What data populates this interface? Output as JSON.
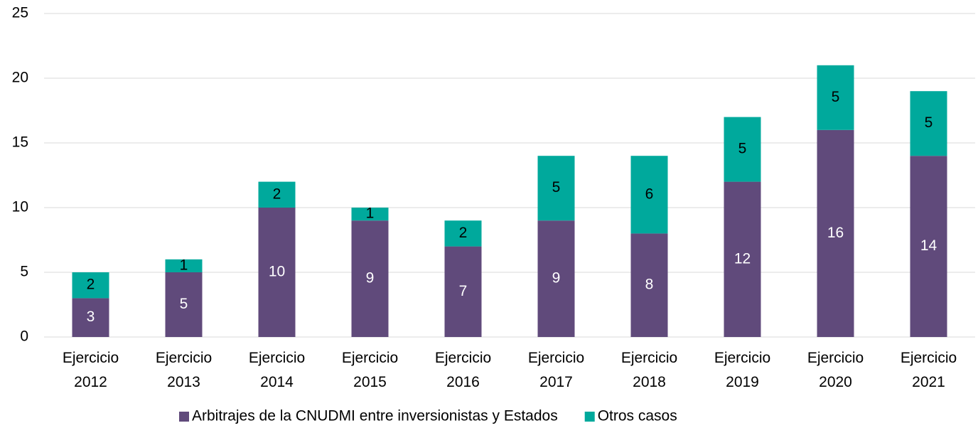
{
  "chart_data": {
    "type": "stacked_bar",
    "categories": [
      "Ejercicio 2012",
      "Ejercicio 2013",
      "Ejercicio 2014",
      "Ejercicio 2015",
      "Ejercicio 2016",
      "Ejercicio 2017",
      "Ejercicio 2018",
      "Ejercicio 2019",
      "Ejercicio 2020",
      "Ejercicio 2021"
    ],
    "series": [
      {
        "name": "Arbitrajes de la CNUDMI entre inversionistas y Estados",
        "color": "#604a7b",
        "label_color": "#ffffff",
        "values": [
          3,
          5,
          10,
          9,
          7,
          9,
          8,
          12,
          16,
          14
        ]
      },
      {
        "name": "Otros casos",
        "color": "#00a99c",
        "label_color": "#000000",
        "values": [
          2,
          1,
          2,
          1,
          2,
          5,
          6,
          5,
          5,
          5
        ]
      }
    ],
    "ylim": [
      0,
      25
    ],
    "yticks": [
      0,
      5,
      10,
      15,
      20,
      25
    ],
    "grid": true,
    "legend": "bottom"
  }
}
